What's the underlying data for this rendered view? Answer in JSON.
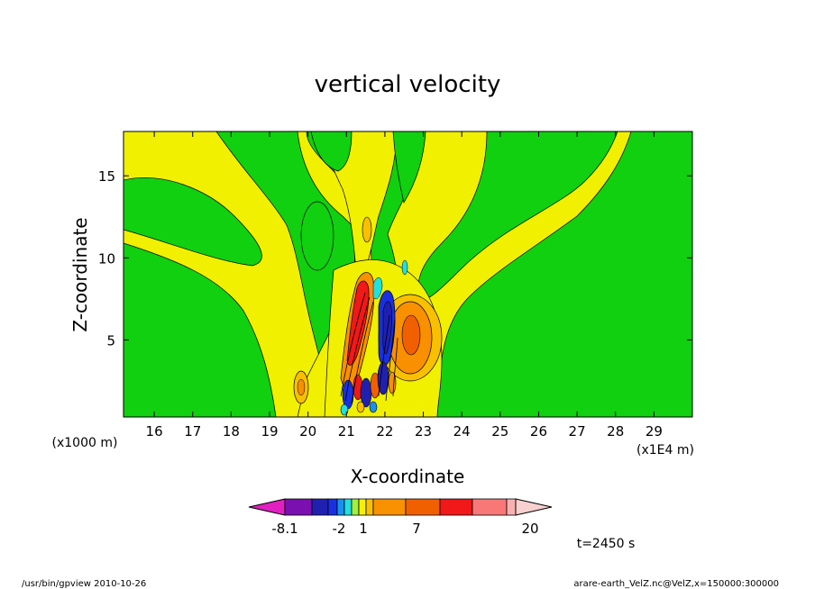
{
  "chart_data": {
    "type": "heatmap",
    "title": "vertical velocity",
    "xlabel": "X-coordinate",
    "ylabel": "Z-coordinate",
    "x_unit": "(x1E4 m)",
    "y_unit": "(x1000 m)",
    "xlim": [
      15.2,
      30.0
    ],
    "ylim": [
      0.3,
      17.7
    ],
    "x_ticks": [
      "16",
      "17",
      "18",
      "19",
      "20",
      "21",
      "22",
      "23",
      "24",
      "25",
      "26",
      "27",
      "28",
      "29"
    ],
    "y_ticks": [
      "5",
      "10",
      "15"
    ],
    "grid": false,
    "colorbar": {
      "labels": [
        "-8.1",
        "-2",
        "1",
        "7",
        "20"
      ],
      "colors": [
        "#e020c0",
        "#7a10b0",
        "#2020b0",
        "#1830e0",
        "#1890f0",
        "#20e0e0",
        "#a0f040",
        "#f8f000",
        "#f8c000",
        "#f89000",
        "#f06000",
        "#f01818",
        "#f87878",
        "#f8b0b0",
        "#f8d0d0"
      ]
    },
    "regions": [
      {
        "name": "background",
        "level": "0 to 1",
        "color": "#10d010"
      },
      {
        "name": "yellow plume",
        "level": "1 to 2",
        "color": "#f0f000"
      },
      {
        "name": "updraft core upper",
        "level": "7 to 9",
        "color": "#f06000"
      },
      {
        "name": "updraft core",
        "level": "9 to 12",
        "color": "#f01818"
      },
      {
        "name": "downdraft core",
        "level": "-8.1 to -4",
        "color": "#2020b0"
      },
      {
        "name": "orange cell right",
        "level": "3 to 7",
        "color": "#f89000"
      }
    ],
    "annotations": [
      "t=2450 s"
    ]
  },
  "footer": {
    "left": "/usr/bin/gpview   2010-10-26",
    "right": "arare-earth_VelZ.nc@VelZ,x=150000:300000"
  }
}
